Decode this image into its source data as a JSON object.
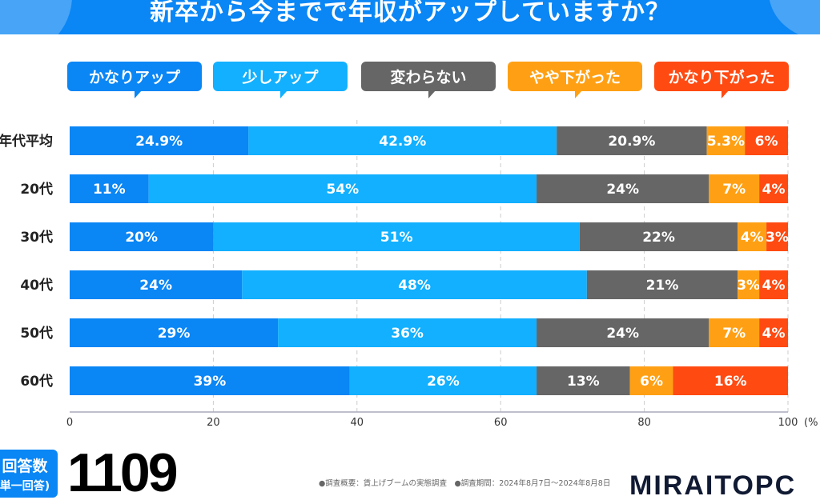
{
  "title": "新卒から今までで年収がアップしていますか？",
  "colors": {
    "title_bg": "#0a86f5",
    "series": [
      "#0a86f5",
      "#12b0ff",
      "#666666",
      "#ffa014",
      "#ff4a12"
    ]
  },
  "chart_data": {
    "type": "bar",
    "orientation": "horizontal",
    "stacked": true,
    "title": "新卒から今までで年収がアップしていますか？",
    "categories": [
      "年代平均",
      "20代",
      "30代",
      "40代",
      "50代",
      "60代"
    ],
    "series": [
      {
        "name": "かなりアップ",
        "values": [
          24.9,
          11,
          20,
          24,
          29,
          39
        ],
        "labels": [
          "24.9%",
          "11%",
          "20%",
          "24%",
          "29%",
          "39%"
        ]
      },
      {
        "name": "少しアップ",
        "values": [
          42.9,
          54,
          51,
          48,
          36,
          26
        ],
        "labels": [
          "42.9%",
          "54%",
          "51%",
          "48%",
          "36%",
          "26%"
        ]
      },
      {
        "name": "変わらない",
        "values": [
          20.9,
          24,
          22,
          21,
          24,
          13
        ],
        "labels": [
          "20.9%",
          "24%",
          "22%",
          "21%",
          "24%",
          "13%"
        ]
      },
      {
        "name": "やや下がった",
        "values": [
          5.3,
          7,
          4,
          3,
          7,
          6
        ],
        "labels": [
          "5.3%",
          "7%",
          "4%",
          "3%",
          "7%",
          "6%"
        ]
      },
      {
        "name": "かなり下がった",
        "values": [
          6,
          4,
          3,
          4,
          4,
          16
        ],
        "labels": [
          "6%",
          "4%",
          "3%",
          "4%",
          "4%",
          "16%"
        ]
      }
    ],
    "xlim": [
      0,
      100
    ],
    "xticks": [
      "0",
      "20",
      "40",
      "60",
      "80",
      "100"
    ],
    "xunit": "(%",
    "grid": true,
    "legend_placement": "top"
  },
  "footer": {
    "count_label": "回答数",
    "count_sub": "単一回答)",
    "count": "1109",
    "note": "●調査概要：賃上げブームの実態調査　●調査期間：2024年8月7日〜2024年8月8日",
    "logo": "MIRAITOPC"
  }
}
